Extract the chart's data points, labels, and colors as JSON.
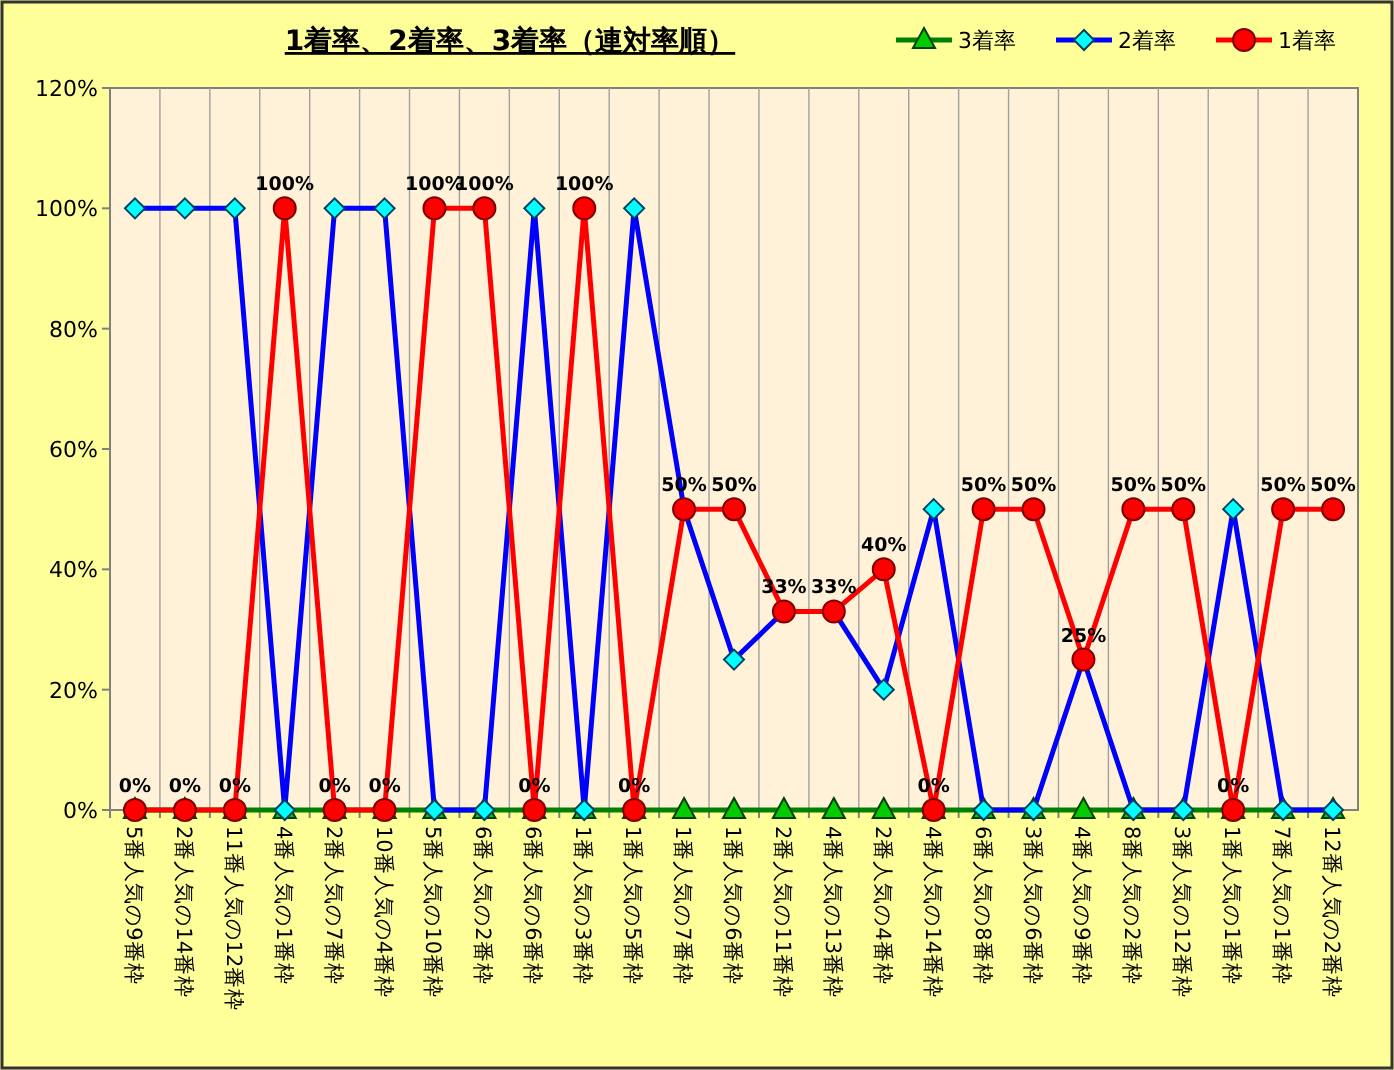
{
  "chart_data": {
    "type": "line",
    "title": "1着率、2着率、3着率（連対率順）",
    "categories": [
      "5番人気の9番枠",
      "2番人気の14番枠",
      "11番人気の12番枠",
      "4番人気の1番枠",
      "2番人気の7番枠",
      "10番人気の4番枠",
      "5番人気の10番枠",
      "6番人気の2番枠",
      "6番人気の6番枠",
      "1番人気の3番枠",
      "1番人気の5番枠",
      "1番人気の7番枠",
      "1番人気の6番枠",
      "2番人気の11番枠",
      "4番人気の13番枠",
      "2番人気の4番枠",
      "4番人気の14番枠",
      "6番人気の8番枠",
      "3番人気の6番枠",
      "4番人気の9番枠",
      "8番人気の2番枠",
      "3番人気の12番枠",
      "1番人気の1番枠",
      "7番人気の1番枠",
      "12番人気の2番枠"
    ],
    "series": [
      {
        "name": "3着率",
        "color": "#008000",
        "marker": "triangle",
        "values": [
          0,
          0,
          0,
          0,
          0,
          0,
          0,
          0,
          0,
          0,
          0,
          0,
          0,
          0,
          0,
          0,
          0,
          0,
          0,
          0,
          0,
          0,
          0,
          0,
          0
        ]
      },
      {
        "name": "2着率",
        "color": "#0000ff",
        "marker": "diamond",
        "values": [
          100,
          100,
          100,
          0,
          100,
          100,
          0,
          0,
          100,
          0,
          100,
          50,
          25,
          33,
          33,
          20,
          50,
          0,
          0,
          25,
          0,
          0,
          50,
          0,
          0
        ]
      },
      {
        "name": "1着率",
        "color": "#ff0000",
        "marker": "circle",
        "values": [
          0,
          0,
          0,
          100,
          0,
          0,
          100,
          100,
          0,
          100,
          0,
          50,
          50,
          33,
          33,
          40,
          0,
          50,
          50,
          25,
          50,
          50,
          0,
          50,
          50
        ],
        "value_labels": [
          "0%",
          "0%",
          "0%",
          "100%",
          "0%",
          "0%",
          "100%",
          "100%",
          "0%",
          "100%",
          "0%",
          "50%",
          "50%",
          "33%",
          "33%",
          "40%",
          "0%",
          "50%",
          "50%",
          "25%",
          "50%",
          "50%",
          "0%",
          "50%",
          "50%"
        ]
      }
    ],
    "ylim": [
      0,
      120
    ],
    "yticks": [
      {
        "value": 0,
        "label": "0%"
      },
      {
        "value": 20,
        "label": "20%"
      },
      {
        "value": 40,
        "label": "40%"
      },
      {
        "value": 60,
        "label": "60%"
      },
      {
        "value": 80,
        "label": "80%"
      },
      {
        "value": 100,
        "label": "100%"
      },
      {
        "value": 120,
        "label": "120%"
      }
    ],
    "grid": "x",
    "legend": "top right",
    "line_style": "solid"
  }
}
